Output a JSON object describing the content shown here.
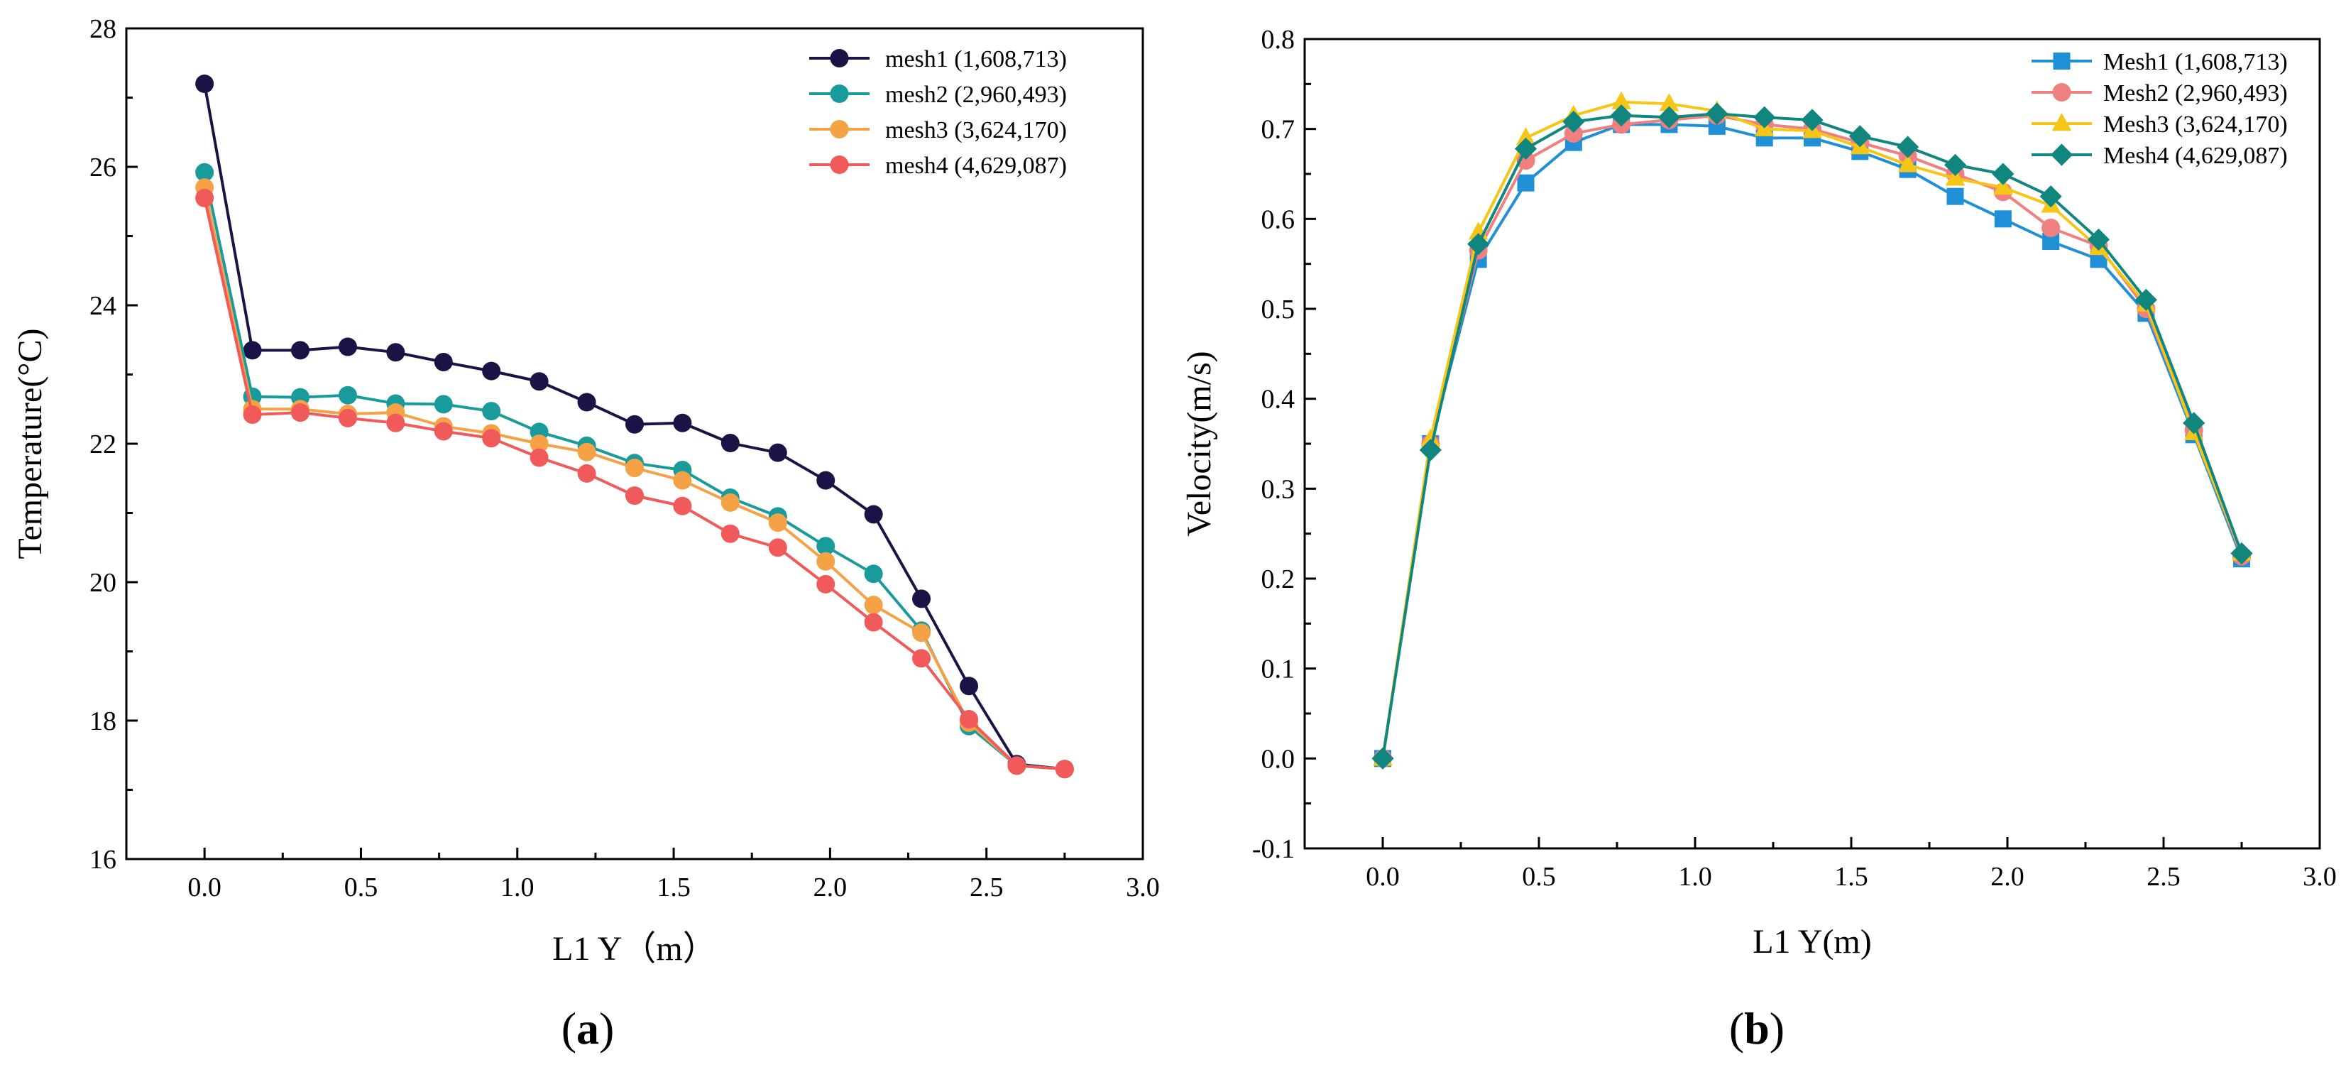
{
  "figure": {
    "panels": [
      {
        "id": "a",
        "label_open": "(",
        "label_letter": "a",
        "label_close": ")"
      },
      {
        "id": "b",
        "label_open": "(",
        "label_letter": "b",
        "label_close": ")"
      }
    ]
  },
  "chart_data": [
    {
      "id": "a",
      "type": "line",
      "title": "",
      "xlabel": "L1 Y（m）",
      "ylabel": "Temperature(°C)",
      "xlim": [
        -0.25,
        3.0
      ],
      "ylim": [
        16,
        28
      ],
      "xticks": [
        0.0,
        0.5,
        1.0,
        1.5,
        2.0,
        2.5,
        3.0
      ],
      "xtick_labels": [
        "0.0",
        "0.5",
        "1.0",
        "1.5",
        "2.0",
        "2.5",
        "3.0"
      ],
      "yticks": [
        16,
        18,
        20,
        22,
        24,
        26,
        28
      ],
      "ytick_labels": [
        "16",
        "18",
        "20",
        "22",
        "24",
        "26",
        "28"
      ],
      "grid": false,
      "legend_position": "top-right",
      "marker": "circle",
      "x": [
        0.0,
        0.153,
        0.306,
        0.458,
        0.611,
        0.764,
        0.917,
        1.07,
        1.222,
        1.375,
        1.528,
        1.681,
        1.833,
        1.986,
        2.139,
        2.292,
        2.444,
        2.597,
        2.75
      ],
      "series": [
        {
          "name": "mesh1 (1,608,713)",
          "color": "#1a1446",
          "values": [
            27.2,
            23.35,
            23.35,
            23.4,
            23.32,
            23.18,
            23.05,
            22.9,
            22.6,
            22.28,
            22.3,
            22.01,
            21.87,
            21.47,
            20.98,
            19.76,
            18.5,
            17.37,
            17.3
          ]
        },
        {
          "name": "mesh2 (2,960,493)",
          "color": "#1a9b9b",
          "values": [
            25.92,
            22.68,
            22.67,
            22.7,
            22.58,
            22.57,
            22.47,
            22.17,
            21.97,
            21.72,
            21.62,
            21.22,
            20.95,
            20.52,
            20.12,
            19.3,
            17.92,
            17.35,
            17.3
          ]
        },
        {
          "name": "mesh3 (3,624,170)",
          "color": "#f5a246",
          "values": [
            25.7,
            22.5,
            22.5,
            22.43,
            22.45,
            22.25,
            22.15,
            22.0,
            21.88,
            21.65,
            21.47,
            21.15,
            20.86,
            20.3,
            19.67,
            19.27,
            17.97,
            17.35,
            17.3
          ]
        },
        {
          "name": "mesh4 (4,629,087)",
          "color": "#f05a5a",
          "values": [
            25.55,
            22.42,
            22.45,
            22.37,
            22.3,
            22.18,
            22.08,
            21.8,
            21.57,
            21.25,
            21.1,
            20.7,
            20.5,
            19.97,
            19.42,
            18.9,
            18.02,
            17.35,
            17.3
          ]
        }
      ]
    },
    {
      "id": "b",
      "type": "line",
      "title": "",
      "xlabel": "L1 Y(m)",
      "ylabel": "Velocity(m/s)",
      "xlim": [
        -0.25,
        3.0
      ],
      "ylim": [
        -0.1,
        0.8
      ],
      "xticks": [
        0.0,
        0.5,
        1.0,
        1.5,
        2.0,
        2.5,
        3.0
      ],
      "xtick_labels": [
        "0.0",
        "0.5",
        "1.0",
        "1.5",
        "2.0",
        "2.5",
        "3.0"
      ],
      "yticks": [
        -0.1,
        0.0,
        0.1,
        0.2,
        0.3,
        0.4,
        0.5,
        0.6,
        0.7,
        0.8
      ],
      "ytick_labels": [
        "-0.1",
        "0.0",
        "0.1",
        "0.2",
        "0.3",
        "0.4",
        "0.5",
        "0.6",
        "0.7",
        "0.8"
      ],
      "grid": false,
      "legend_position": "top-right",
      "x": [
        0.0,
        0.153,
        0.306,
        0.458,
        0.611,
        0.764,
        0.917,
        1.07,
        1.222,
        1.375,
        1.528,
        1.681,
        1.833,
        1.986,
        2.139,
        2.292,
        2.444,
        2.597,
        2.75
      ],
      "series": [
        {
          "name": "Mesh1 (1,608,713)",
          "color": "#1f8fd6",
          "marker": "square",
          "values": [
            0.0,
            0.35,
            0.555,
            0.64,
            0.685,
            0.705,
            0.705,
            0.703,
            0.69,
            0.69,
            0.675,
            0.655,
            0.625,
            0.6,
            0.575,
            0.555,
            0.495,
            0.36,
            0.222
          ]
        },
        {
          "name": "Mesh2 (2,960,493)",
          "color": "#f08080",
          "marker": "circle",
          "values": [
            0.0,
            0.35,
            0.565,
            0.665,
            0.695,
            0.705,
            0.71,
            0.715,
            0.705,
            0.7,
            0.685,
            0.67,
            0.65,
            0.63,
            0.59,
            0.57,
            0.5,
            0.365,
            0.225
          ]
        },
        {
          "name": "Mesh3 (3,624,170)",
          "color": "#f5c518",
          "marker": "triangle",
          "values": [
            0.0,
            0.355,
            0.585,
            0.69,
            0.715,
            0.73,
            0.728,
            0.72,
            0.7,
            0.698,
            0.68,
            0.66,
            0.645,
            0.635,
            0.615,
            0.568,
            0.505,
            0.362,
            0.228
          ]
        },
        {
          "name": "Mesh4 (4,629,087)",
          "color": "#10867e",
          "marker": "diamond",
          "values": [
            0.0,
            0.343,
            0.572,
            0.678,
            0.708,
            0.715,
            0.713,
            0.717,
            0.713,
            0.71,
            0.692,
            0.68,
            0.66,
            0.65,
            0.625,
            0.577,
            0.51,
            0.373,
            0.228
          ]
        }
      ]
    }
  ]
}
